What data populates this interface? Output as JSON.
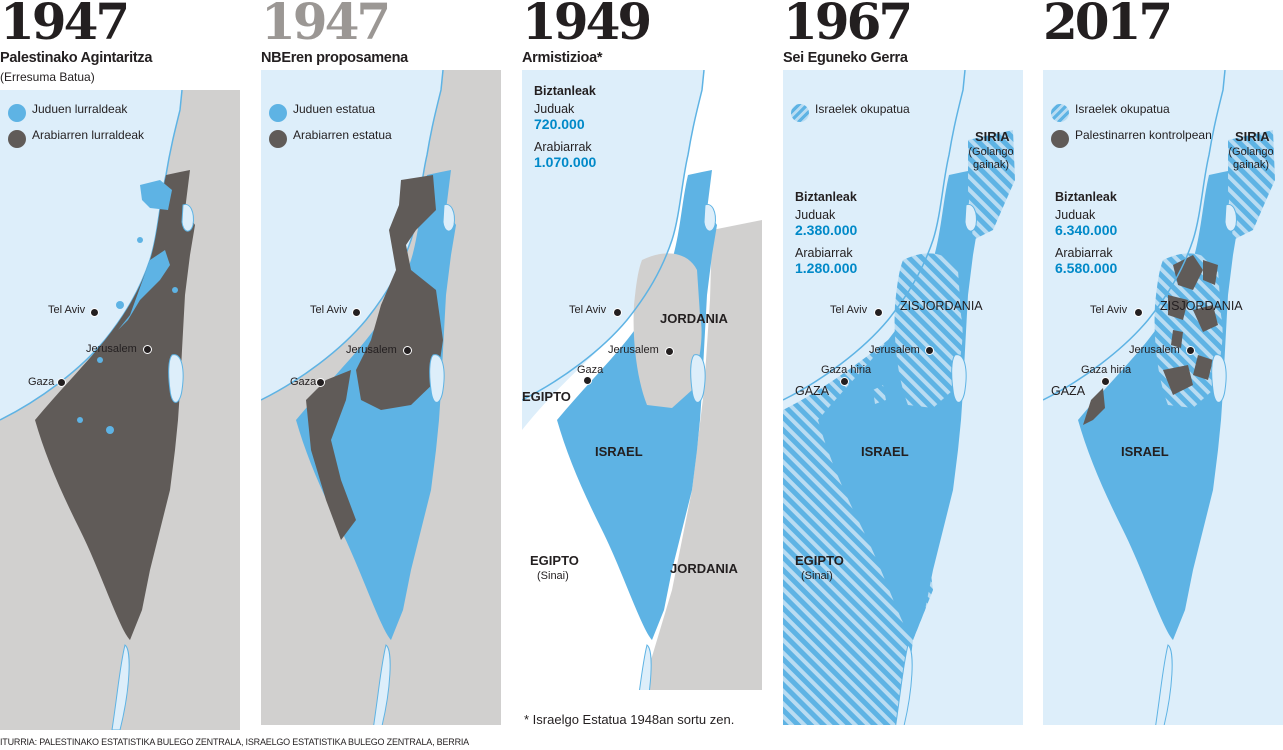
{
  "colors": {
    "sea": "#ddeefa",
    "jewish": "#5eb3e4",
    "arab": "#605b58",
    "grey_land": "#d1d0cf",
    "white": "#ffffff",
    "accent_text": "#0089c8"
  },
  "panels": [
    {
      "year": "1947",
      "title": "Palestinako Agintaritza",
      "subtitle": "(Erresuma Batua)",
      "legend": [
        {
          "label": "Juduen lurraldeak",
          "icon": "jewish-territory-swatch"
        },
        {
          "label": "Arabiarren lurraldeak",
          "icon": "arab-territory-swatch"
        }
      ],
      "cities": {
        "telaviv": "Tel Aviv",
        "jerusalem": "Jerusalem",
        "gaza": "Gaza"
      }
    },
    {
      "year": "1947",
      "title": "NBEren proposamena",
      "legend": [
        {
          "label": "Juduen estatua",
          "icon": "jewish-state-swatch"
        },
        {
          "label": "Arabiarren estatua",
          "icon": "arab-state-swatch"
        }
      ],
      "cities": {
        "telaviv": "Tel Aviv",
        "jerusalem": "Jerusalem",
        "gaza": "Gaza"
      }
    },
    {
      "year": "1949",
      "title": "Armistizioa*",
      "population": {
        "heading": "Biztanleak",
        "jews_label": "Juduak",
        "jews_value": "720.000",
        "arabs_label": "Arabiarrak",
        "arabs_value": "1.070.000"
      },
      "cities": {
        "telaviv": "Tel Aviv",
        "jerusalem": "Jerusalem",
        "gaza": "Gaza"
      },
      "regions": {
        "jordania_north": "JORDANIA",
        "egipto_north": "EGIPTO",
        "israel": "ISRAEL",
        "egipto_south": "EGIPTO",
        "sinai": "(Sinai)",
        "jordania_south": "JORDANIA"
      },
      "footnote": "* Israelgo Estatua 1948an sortu zen."
    },
    {
      "year": "1967",
      "title": "Sei Eguneko Gerra",
      "legend": [
        {
          "label": "Israelek okupatua",
          "icon": "occupied-hatch-swatch"
        }
      ],
      "population": {
        "heading": "Biztanleak",
        "jews_label": "Juduak",
        "jews_value": "2.380.000",
        "arabs_label": "Arabiarrak",
        "arabs_value": "1.280.000"
      },
      "cities": {
        "telaviv": "Tel Aviv",
        "jerusalem": "Jerusalem",
        "gaza": "Gaza hiria"
      },
      "regions": {
        "siria": "SIRIA",
        "golan": "(Golango gainak)",
        "zisjordania": "ZISJORDANIA",
        "gaza": "GAZA",
        "israel": "ISRAEL",
        "egipto": "EGIPTO",
        "sinai": "(Sinai)"
      }
    },
    {
      "year": "2017",
      "title": "",
      "legend": [
        {
          "label": "Israelek okupatua",
          "icon": "occupied-hatch-swatch"
        },
        {
          "label": "Palestinarren kontrolpean",
          "icon": "palestinian-control-swatch"
        }
      ],
      "population": {
        "heading": "Biztanleak",
        "jews_label": "Juduak",
        "jews_value": "6.340.000",
        "arabs_label": "Arabiarrak",
        "arabs_value": "6.580.000"
      },
      "cities": {
        "telaviv": "Tel Aviv",
        "jerusalem": "Jerusalem",
        "gaza": "Gaza hiria"
      },
      "regions": {
        "siria": "SIRIA",
        "golan": "(Golango gainak)",
        "zisjordania": "ZISJORDANIA",
        "gaza": "GAZA",
        "israel": "ISRAEL"
      }
    }
  ],
  "source": "ITURRIA: PALESTINAKO ESTATISTIKA BULEGO ZENTRALA, ISRAELGO ESTATISTIKA BULEGO ZENTRALA, BERRIA"
}
